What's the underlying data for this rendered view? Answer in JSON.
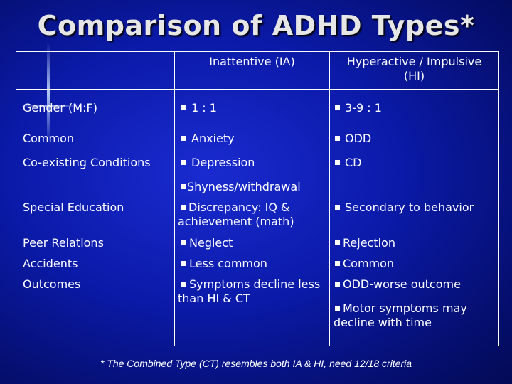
{
  "title": "Comparison of ADHD Types*",
  "header": {
    "col1": "Inattentive (IA)",
    "col2_line1": "Hyperactive /   Impulsive",
    "col2_line2": "(HI)"
  },
  "rows": {
    "gender": {
      "label": "Gender (M:F)",
      "ia": "1 : 1",
      "hi": "3-9 : 1"
    },
    "common": {
      "label": "Common",
      "ia": "Anxiety",
      "hi": "ODD"
    },
    "coexisting": {
      "label": "Co-existing Conditions",
      "ia": "Depression",
      "hi": "CD"
    },
    "shyness": {
      "ia": "Shyness/withdrawal"
    },
    "special_ed": {
      "label": "Special Education",
      "ia_line1": "Discrepancy: IQ &",
      "ia_line2": "achievement (math)",
      "hi": "Secondary to behavior"
    },
    "peer": {
      "label": "Peer Relations",
      "ia": "Neglect",
      "hi": "Rejection"
    },
    "accidents": {
      "label": "Accidents",
      "ia": "Less common",
      "hi": "Common"
    },
    "outcomes": {
      "label": "Outcomes",
      "ia_line1": "Symptoms decline less",
      "ia_line2": "than HI  & CT",
      "hi": "ODD-worse outcome"
    },
    "motor": {
      "hi_line1": "Motor symptoms may",
      "hi_line2": "decline with time"
    }
  },
  "footnote": "* The Combined Type (CT) resembles both IA & HI, need 12/18 criteria",
  "colors": {
    "background": "#0b1aa8",
    "text": "#ffffff",
    "title": "#e6e6e6"
  }
}
